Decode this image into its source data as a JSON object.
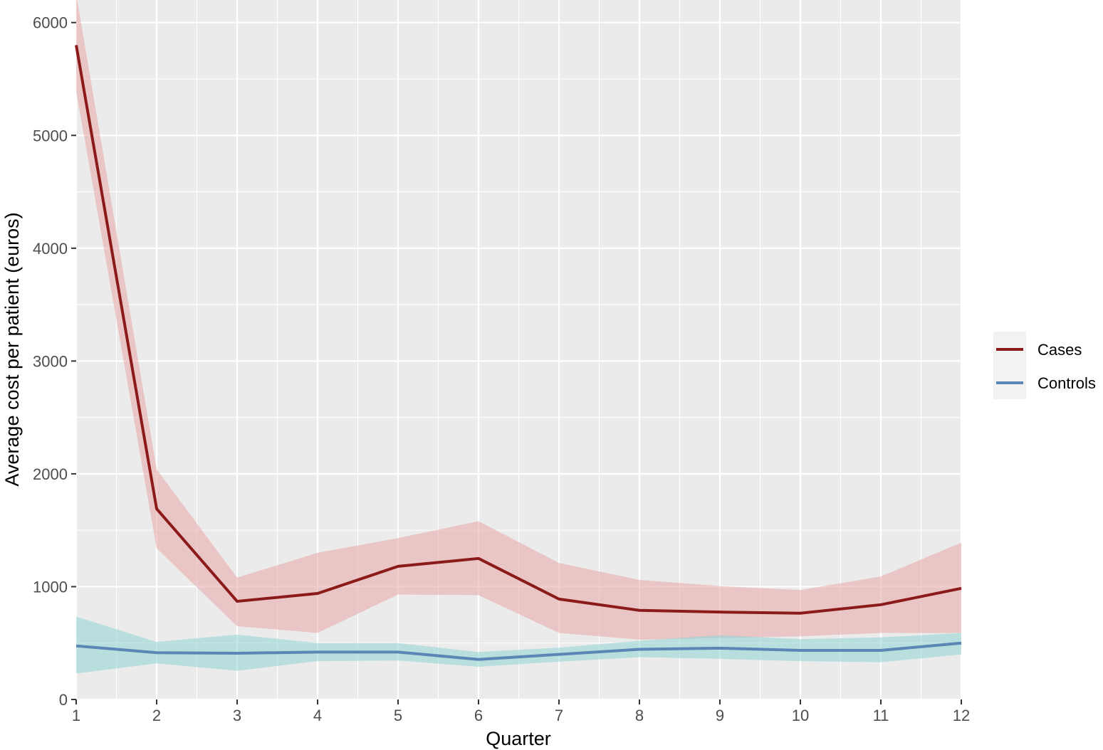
{
  "chart_data": {
    "type": "line",
    "xlabel": "Quarter",
    "ylabel": "Average cost per patient (euros)",
    "x": [
      1,
      2,
      3,
      4,
      5,
      6,
      7,
      8,
      9,
      10,
      11,
      12
    ],
    "xlim": [
      1,
      12
    ],
    "ylim": [
      0,
      6200
    ],
    "x_ticks": [
      "1",
      "2",
      "3",
      "4",
      "5",
      "6",
      "7",
      "8",
      "9",
      "10",
      "11",
      "12"
    ],
    "y_ticks": [
      0,
      1000,
      2000,
      3000,
      4000,
      5000,
      6000
    ],
    "grid": true,
    "legend_position": "right",
    "series": [
      {
        "name": "Cases",
        "color": "#8b1a1a",
        "band_color": "#e8a6a6",
        "values": [
          5800,
          1690,
          870,
          940,
          1180,
          1250,
          890,
          790,
          775,
          765,
          840,
          985
        ],
        "lower": [
          5390,
          1340,
          650,
          590,
          930,
          925,
          590,
          530,
          545,
          560,
          590,
          590
        ],
        "upper": [
          6250,
          2040,
          1080,
          1300,
          1430,
          1580,
          1210,
          1060,
          1005,
          970,
          1090,
          1390
        ]
      },
      {
        "name": "Controls",
        "color": "#5b86b5",
        "band_color": "#8fd3d3",
        "values": [
          475,
          415,
          410,
          420,
          420,
          355,
          400,
          445,
          455,
          435,
          435,
          500
        ],
        "lower": [
          230,
          320,
          255,
          340,
          345,
          290,
          335,
          375,
          360,
          340,
          330,
          400
        ],
        "upper": [
          735,
          510,
          575,
          500,
          500,
          420,
          460,
          520,
          570,
          535,
          550,
          590
        ]
      }
    ]
  }
}
